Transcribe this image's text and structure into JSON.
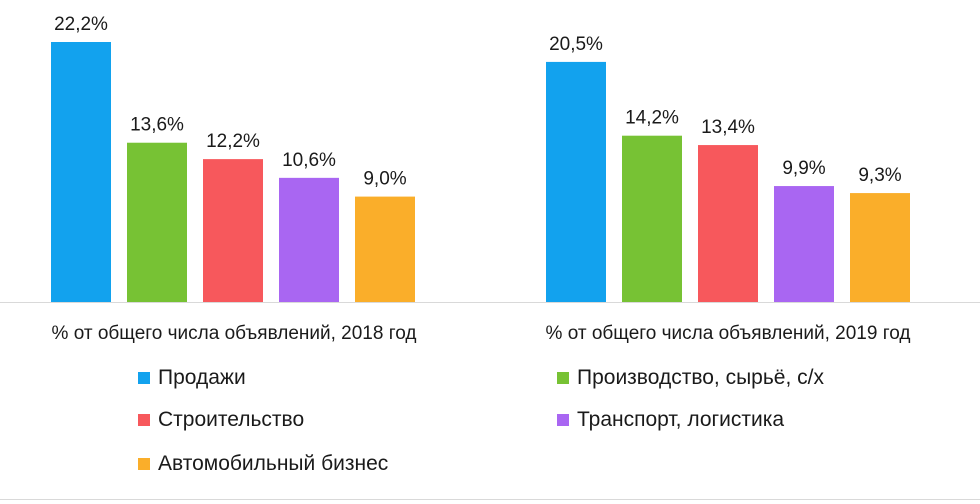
{
  "chart_data": {
    "type": "bar",
    "categories": [
      "% от общего числа объявлений, 2018 год",
      "% от общего числа объявлений, 2019 год"
    ],
    "series": [
      {
        "name": "Продажи",
        "color": "#12a2ee",
        "values": [
          22.2,
          20.5
        ],
        "labels": [
          "22,2%",
          "20,5%"
        ]
      },
      {
        "name": "Производство, сырьё, с/х",
        "color": "#77c234",
        "values": [
          13.6,
          14.2
        ],
        "labels": [
          "13,6%",
          "14,2%"
        ]
      },
      {
        "name": "Строительство",
        "color": "#f7585c",
        "values": [
          12.2,
          13.4
        ],
        "labels": [
          "12,2%",
          "13,4%"
        ]
      },
      {
        "name": "Транспорт, логистика",
        "color": "#a966f2",
        "values": [
          10.6,
          9.9
        ],
        "labels": [
          "10,6%",
          "9,9%"
        ]
      },
      {
        "name": "Автомобильный бизнес",
        "color": "#faae2a",
        "values": [
          9.0,
          9.3
        ],
        "labels": [
          "9,0%",
          "9,3%"
        ]
      }
    ],
    "ylim": [
      0,
      22.2
    ],
    "grid": false,
    "legend_position": "bottom"
  }
}
